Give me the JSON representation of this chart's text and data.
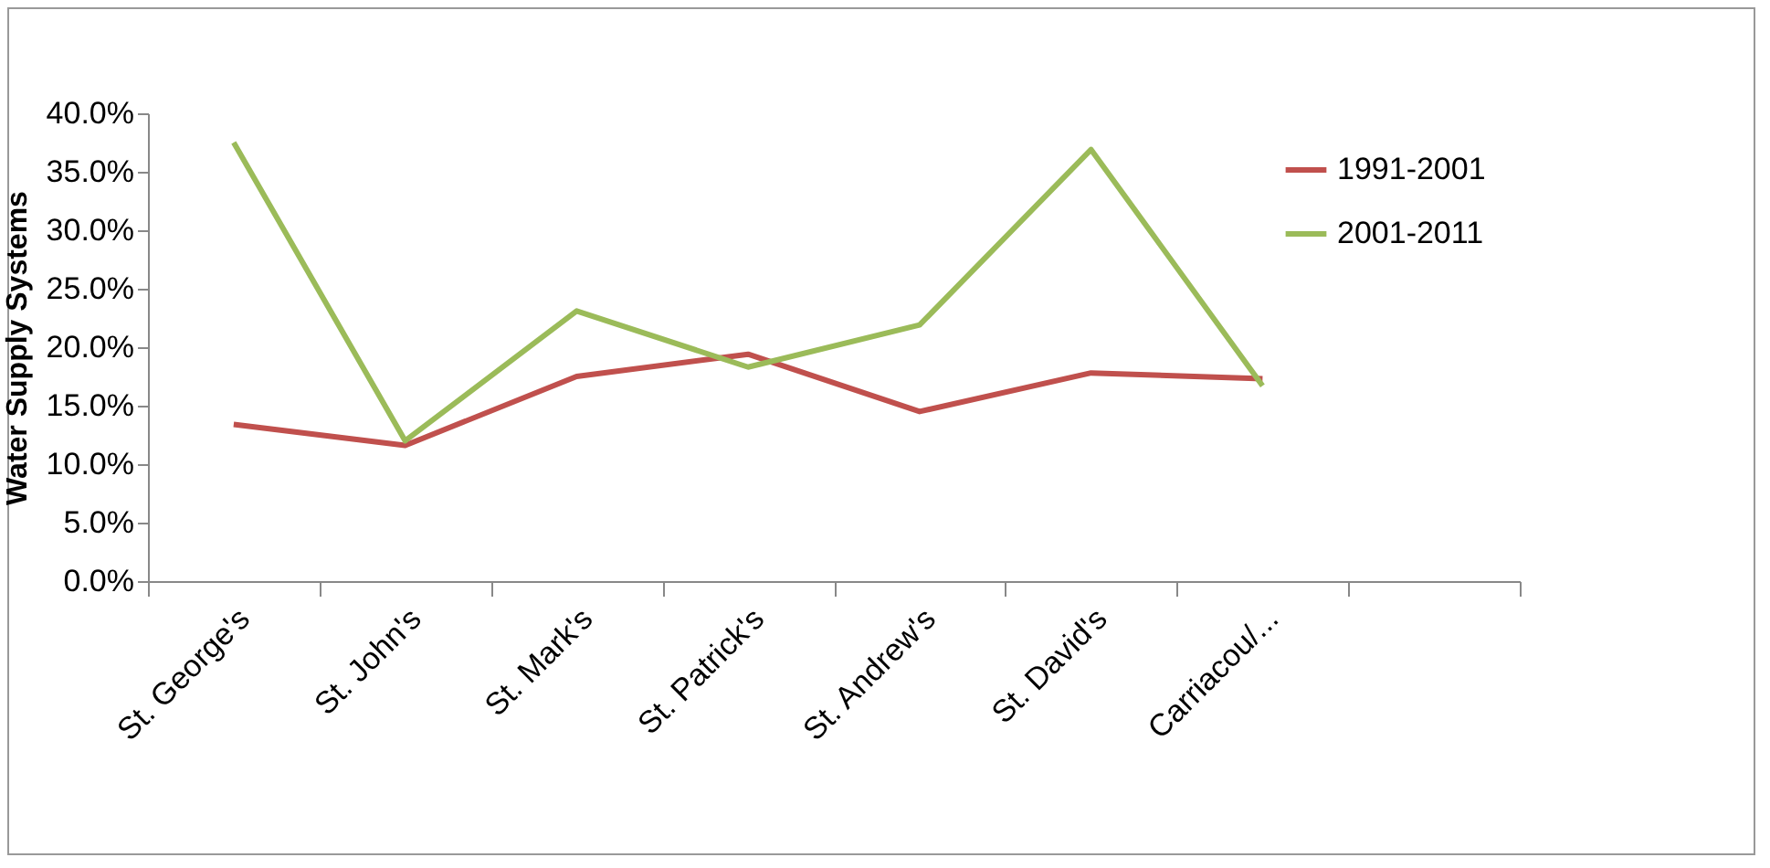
{
  "chart_data": {
    "type": "line",
    "ylabel": "Water Supply Systems",
    "categories": [
      "St. George's",
      "St. John's",
      "St. Mark's",
      "St. Patrick's",
      "St. Andrew's",
      "St. David's",
      "Carriacou/...",
      null
    ],
    "series": [
      {
        "name": "1991-2001",
        "color": "#c0504d",
        "values": [
          13.4,
          11.6,
          17.5,
          19.4,
          14.5,
          17.8,
          17.3,
          null
        ]
      },
      {
        "name": "2001-2011",
        "color": "#9bbb59",
        "values": [
          37.5,
          12.0,
          23.1,
          18.3,
          21.9,
          36.9,
          16.7,
          null
        ]
      }
    ],
    "ylim": [
      0,
      40
    ],
    "yticks": [
      {
        "value": 0,
        "label": "0.0%"
      },
      {
        "value": 5,
        "label": "5.0%"
      },
      {
        "value": 10,
        "label": "10.0%"
      },
      {
        "value": 15,
        "label": "15.0%"
      },
      {
        "value": 20,
        "label": "20.0%"
      },
      {
        "value": 25,
        "label": "25.0%"
      },
      {
        "value": 30,
        "label": "30.0%"
      },
      {
        "value": 35,
        "label": "35.0%"
      },
      {
        "value": 40,
        "label": "40.0%"
      }
    ],
    "grid": false,
    "legend": "top right",
    "marker": "none",
    "line_style": "solid"
  }
}
